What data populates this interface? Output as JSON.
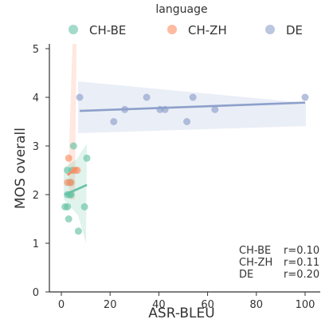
{
  "chart_data": {
    "type": "scatter",
    "xlabel": "ASR-BLEU",
    "ylabel": "MOS overall",
    "xlim": [
      -5,
      102
    ],
    "ylim": [
      0,
      5.1
    ],
    "x_ticks": [
      0,
      20,
      40,
      60,
      80,
      100
    ],
    "y_ticks": [
      0,
      1,
      2,
      3,
      4,
      5
    ],
    "grid": false,
    "legend": {
      "title": "language",
      "placement": "top-center",
      "entries": [
        "CH-BE",
        "CH-ZH",
        "DE"
      ]
    },
    "series": [
      {
        "name": "CH-BE",
        "color": "#66c2a5",
        "points": [
          {
            "x": 1.5,
            "y": 1.75
          },
          {
            "x": 2.5,
            "y": 1.75
          },
          {
            "x": 3,
            "y": 1.5
          },
          {
            "x": 2.5,
            "y": 2.0
          },
          {
            "x": 3.5,
            "y": 2.25
          },
          {
            "x": 4,
            "y": 2.0
          },
          {
            "x": 2.5,
            "y": 2.5
          },
          {
            "x": 4.5,
            "y": 2.5
          },
          {
            "x": 5,
            "y": 3.0
          },
          {
            "x": 7,
            "y": 1.25
          },
          {
            "x": 9.5,
            "y": 1.75
          },
          {
            "x": 10.5,
            "y": 2.75
          },
          {
            "x": 3.5,
            "y": 2.0
          }
        ],
        "regression": {
          "x": [
            1.5,
            10.5
          ],
          "y": [
            2.0,
            2.2
          ]
        },
        "r": "0.10"
      },
      {
        "name": "CH-ZH",
        "color": "#fc8d62",
        "points": [
          {
            "x": 2.5,
            "y": 2.25
          },
          {
            "x": 3.0,
            "y": 2.75
          },
          {
            "x": 5.5,
            "y": 2.5
          },
          {
            "x": 6.5,
            "y": 2.5
          },
          {
            "x": 4.0,
            "y": 2.25
          }
        ],
        "regression": {
          "x": [
            2.5,
            6.5
          ],
          "y": [
            2.4,
            2.55
          ]
        },
        "r": "0.11"
      },
      {
        "name": "DE",
        "color": "#8da0cb",
        "points": [
          {
            "x": 7.5,
            "y": 4.0
          },
          {
            "x": 21.5,
            "y": 3.5
          },
          {
            "x": 26,
            "y": 3.75
          },
          {
            "x": 35,
            "y": 4.0
          },
          {
            "x": 40.5,
            "y": 3.75
          },
          {
            "x": 42.5,
            "y": 3.75
          },
          {
            "x": 51.5,
            "y": 3.5
          },
          {
            "x": 54,
            "y": 4.0
          },
          {
            "x": 63,
            "y": 3.75
          },
          {
            "x": 100,
            "y": 4.0
          }
        ],
        "regression": {
          "x": [
            7.5,
            100
          ],
          "y": [
            3.72,
            3.89
          ]
        },
        "r": "0.20"
      }
    ],
    "annotations": [
      {
        "label": "CH-BE",
        "text": "r=0.10"
      },
      {
        "label": "CH-ZH",
        "text": "r=0.11"
      },
      {
        "label": "DE",
        "text": "r=0.20"
      }
    ]
  }
}
